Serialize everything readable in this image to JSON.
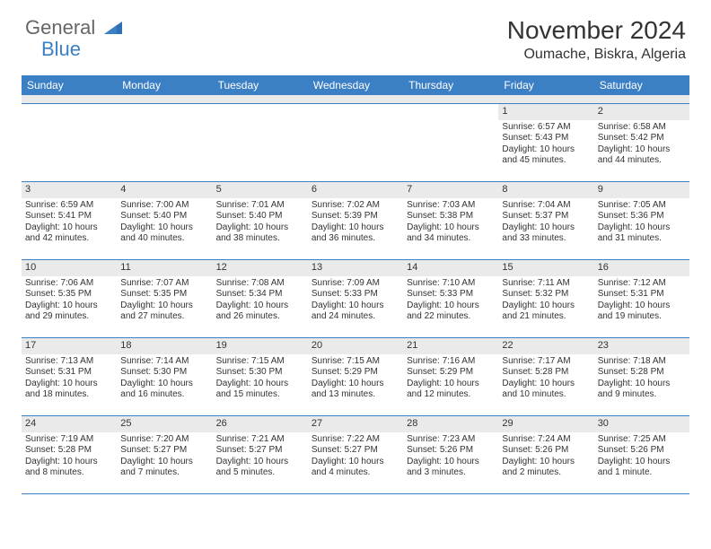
{
  "logo": {
    "general": "General",
    "blue": "Blue"
  },
  "title": "November 2024",
  "location": "Oumache, Biskra, Algeria",
  "colors": {
    "header_bar": "#3b7fc4",
    "day_bar": "#eaeaea",
    "text": "#333333",
    "logo_gray": "#666666",
    "logo_blue": "#3b7fc4",
    "border": "#3b7fc4"
  },
  "daysOfWeek": [
    "Sunday",
    "Monday",
    "Tuesday",
    "Wednesday",
    "Thursday",
    "Friday",
    "Saturday"
  ],
  "weeks": [
    [
      {
        "empty": true
      },
      {
        "empty": true
      },
      {
        "empty": true
      },
      {
        "empty": true
      },
      {
        "empty": true
      },
      {
        "n": "1",
        "sunrise": "Sunrise: 6:57 AM",
        "sunset": "Sunset: 5:43 PM",
        "day1": "Daylight: 10 hours",
        "day2": "and 45 minutes."
      },
      {
        "n": "2",
        "sunrise": "Sunrise: 6:58 AM",
        "sunset": "Sunset: 5:42 PM",
        "day1": "Daylight: 10 hours",
        "day2": "and 44 minutes."
      }
    ],
    [
      {
        "n": "3",
        "sunrise": "Sunrise: 6:59 AM",
        "sunset": "Sunset: 5:41 PM",
        "day1": "Daylight: 10 hours",
        "day2": "and 42 minutes."
      },
      {
        "n": "4",
        "sunrise": "Sunrise: 7:00 AM",
        "sunset": "Sunset: 5:40 PM",
        "day1": "Daylight: 10 hours",
        "day2": "and 40 minutes."
      },
      {
        "n": "5",
        "sunrise": "Sunrise: 7:01 AM",
        "sunset": "Sunset: 5:40 PM",
        "day1": "Daylight: 10 hours",
        "day2": "and 38 minutes."
      },
      {
        "n": "6",
        "sunrise": "Sunrise: 7:02 AM",
        "sunset": "Sunset: 5:39 PM",
        "day1": "Daylight: 10 hours",
        "day2": "and 36 minutes."
      },
      {
        "n": "7",
        "sunrise": "Sunrise: 7:03 AM",
        "sunset": "Sunset: 5:38 PM",
        "day1": "Daylight: 10 hours",
        "day2": "and 34 minutes."
      },
      {
        "n": "8",
        "sunrise": "Sunrise: 7:04 AM",
        "sunset": "Sunset: 5:37 PM",
        "day1": "Daylight: 10 hours",
        "day2": "and 33 minutes."
      },
      {
        "n": "9",
        "sunrise": "Sunrise: 7:05 AM",
        "sunset": "Sunset: 5:36 PM",
        "day1": "Daylight: 10 hours",
        "day2": "and 31 minutes."
      }
    ],
    [
      {
        "n": "10",
        "sunrise": "Sunrise: 7:06 AM",
        "sunset": "Sunset: 5:35 PM",
        "day1": "Daylight: 10 hours",
        "day2": "and 29 minutes."
      },
      {
        "n": "11",
        "sunrise": "Sunrise: 7:07 AM",
        "sunset": "Sunset: 5:35 PM",
        "day1": "Daylight: 10 hours",
        "day2": "and 27 minutes."
      },
      {
        "n": "12",
        "sunrise": "Sunrise: 7:08 AM",
        "sunset": "Sunset: 5:34 PM",
        "day1": "Daylight: 10 hours",
        "day2": "and 26 minutes."
      },
      {
        "n": "13",
        "sunrise": "Sunrise: 7:09 AM",
        "sunset": "Sunset: 5:33 PM",
        "day1": "Daylight: 10 hours",
        "day2": "and 24 minutes."
      },
      {
        "n": "14",
        "sunrise": "Sunrise: 7:10 AM",
        "sunset": "Sunset: 5:33 PM",
        "day1": "Daylight: 10 hours",
        "day2": "and 22 minutes."
      },
      {
        "n": "15",
        "sunrise": "Sunrise: 7:11 AM",
        "sunset": "Sunset: 5:32 PM",
        "day1": "Daylight: 10 hours",
        "day2": "and 21 minutes."
      },
      {
        "n": "16",
        "sunrise": "Sunrise: 7:12 AM",
        "sunset": "Sunset: 5:31 PM",
        "day1": "Daylight: 10 hours",
        "day2": "and 19 minutes."
      }
    ],
    [
      {
        "n": "17",
        "sunrise": "Sunrise: 7:13 AM",
        "sunset": "Sunset: 5:31 PM",
        "day1": "Daylight: 10 hours",
        "day2": "and 18 minutes."
      },
      {
        "n": "18",
        "sunrise": "Sunrise: 7:14 AM",
        "sunset": "Sunset: 5:30 PM",
        "day1": "Daylight: 10 hours",
        "day2": "and 16 minutes."
      },
      {
        "n": "19",
        "sunrise": "Sunrise: 7:15 AM",
        "sunset": "Sunset: 5:30 PM",
        "day1": "Daylight: 10 hours",
        "day2": "and 15 minutes."
      },
      {
        "n": "20",
        "sunrise": "Sunrise: 7:15 AM",
        "sunset": "Sunset: 5:29 PM",
        "day1": "Daylight: 10 hours",
        "day2": "and 13 minutes."
      },
      {
        "n": "21",
        "sunrise": "Sunrise: 7:16 AM",
        "sunset": "Sunset: 5:29 PM",
        "day1": "Daylight: 10 hours",
        "day2": "and 12 minutes."
      },
      {
        "n": "22",
        "sunrise": "Sunrise: 7:17 AM",
        "sunset": "Sunset: 5:28 PM",
        "day1": "Daylight: 10 hours",
        "day2": "and 10 minutes."
      },
      {
        "n": "23",
        "sunrise": "Sunrise: 7:18 AM",
        "sunset": "Sunset: 5:28 PM",
        "day1": "Daylight: 10 hours",
        "day2": "and 9 minutes."
      }
    ],
    [
      {
        "n": "24",
        "sunrise": "Sunrise: 7:19 AM",
        "sunset": "Sunset: 5:28 PM",
        "day1": "Daylight: 10 hours",
        "day2": "and 8 minutes."
      },
      {
        "n": "25",
        "sunrise": "Sunrise: 7:20 AM",
        "sunset": "Sunset: 5:27 PM",
        "day1": "Daylight: 10 hours",
        "day2": "and 7 minutes."
      },
      {
        "n": "26",
        "sunrise": "Sunrise: 7:21 AM",
        "sunset": "Sunset: 5:27 PM",
        "day1": "Daylight: 10 hours",
        "day2": "and 5 minutes."
      },
      {
        "n": "27",
        "sunrise": "Sunrise: 7:22 AM",
        "sunset": "Sunset: 5:27 PM",
        "day1": "Daylight: 10 hours",
        "day2": "and 4 minutes."
      },
      {
        "n": "28",
        "sunrise": "Sunrise: 7:23 AM",
        "sunset": "Sunset: 5:26 PM",
        "day1": "Daylight: 10 hours",
        "day2": "and 3 minutes."
      },
      {
        "n": "29",
        "sunrise": "Sunrise: 7:24 AM",
        "sunset": "Sunset: 5:26 PM",
        "day1": "Daylight: 10 hours",
        "day2": "and 2 minutes."
      },
      {
        "n": "30",
        "sunrise": "Sunrise: 7:25 AM",
        "sunset": "Sunset: 5:26 PM",
        "day1": "Daylight: 10 hours",
        "day2": "and 1 minute."
      }
    ]
  ]
}
